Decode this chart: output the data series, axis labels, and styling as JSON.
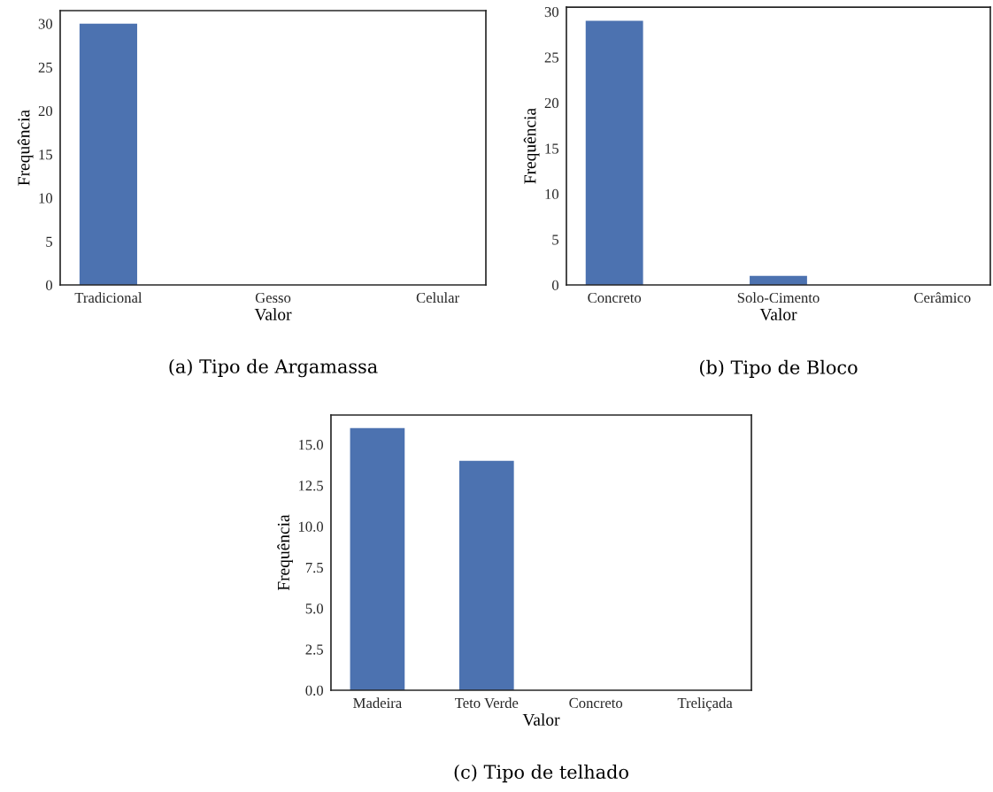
{
  "chart_data": [
    {
      "type": "bar",
      "title": "(a) Tipo de Argamassa",
      "xlabel": "Valor",
      "ylabel": "Frequência",
      "categories": [
        "Tradicional",
        "Gesso",
        "Celular"
      ],
      "values": [
        30,
        0,
        0
      ],
      "color": "#4c72b0",
      "ylim": [
        0,
        31.5
      ],
      "yticks": [
        0,
        5,
        10,
        15,
        20,
        25,
        30
      ],
      "grid": false,
      "legend": false
    },
    {
      "type": "bar",
      "title": "(b) Tipo de Bloco",
      "xlabel": "Valor",
      "ylabel": "Frequência",
      "categories": [
        "Concreto",
        "Solo-Cimento",
        "Cerâmico"
      ],
      "values": [
        29,
        1,
        0
      ],
      "color": "#4c72b0",
      "ylim": [
        0,
        30.5
      ],
      "yticks": [
        0,
        5,
        10,
        15,
        20,
        25,
        30
      ],
      "grid": false,
      "legend": false
    },
    {
      "type": "bar",
      "title": "(c) Tipo de telhado",
      "xlabel": "Valor",
      "ylabel": "Frequência",
      "categories": [
        "Madeira",
        "Teto Verde",
        "Concreto",
        "Treliçada"
      ],
      "values": [
        16,
        14,
        0,
        0
      ],
      "color": "#4c72b0",
      "ylim": [
        0,
        16.8
      ],
      "yticks": [
        {
          "value": 0,
          "label": "0.0"
        },
        {
          "value": 2.5,
          "label": "2.5"
        },
        {
          "value": 5,
          "label": "5.0"
        },
        {
          "value": 7.5,
          "label": "7.5"
        },
        {
          "value": 10,
          "label": "10.0"
        },
        {
          "value": 12.5,
          "label": "12.5"
        },
        {
          "value": 15,
          "label": "15.0"
        }
      ],
      "grid": false,
      "legend": false
    }
  ]
}
